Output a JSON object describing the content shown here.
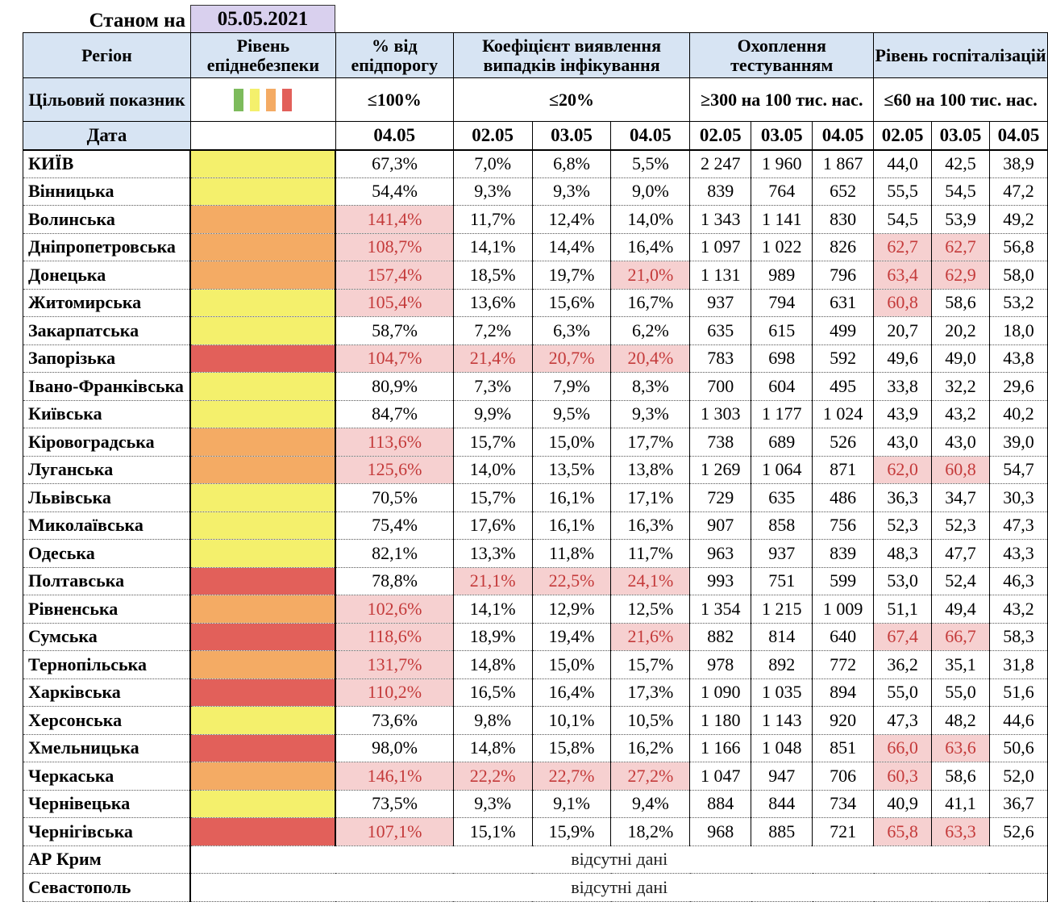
{
  "header": {
    "as_of_label": "Станом на",
    "as_of_date": "05.05.2021"
  },
  "colors": {
    "yellow": "#f4f06c",
    "orange": "#f4ab64",
    "red": "#e2605a",
    "header_blue": "#d7e4f3",
    "highlight": "#f6d0d0"
  },
  "columns": {
    "region": "Регіон",
    "epi_level": "Рівень епіднебезпеки",
    "pct_threshold": "% від епідпорогу",
    "detection": "Коефіцієнт виявлення випадків інфікування",
    "testing": "Охоплення тестуванням",
    "hospital": "Рівень госпіталізацій"
  },
  "targets": {
    "label": "Цільовий показник",
    "pct": "≤100%",
    "detection": "≤20%",
    "testing": "≥300 на 100 тис. нас.",
    "hospital": "≤60 на 100 тис. нас."
  },
  "dates": {
    "label": "Дата",
    "pct": "04.05",
    "days": [
      "02.05",
      "03.05",
      "04.05"
    ]
  },
  "legend_colors": [
    "#7dbb5c",
    "#f4f06c",
    "#f4ab64",
    "#e2605a"
  ],
  "rows": [
    {
      "name": "КИЇВ",
      "level": "yellow",
      "pct": "67,3%",
      "det": [
        "7,0%",
        "6,8%",
        "5,5%"
      ],
      "test": [
        "2 247",
        "1 960",
        "1 867"
      ],
      "hosp": [
        "44,0",
        "42,5",
        "38,9"
      ],
      "hl": []
    },
    {
      "name": "Вінницька",
      "level": "yellow",
      "pct": "54,4%",
      "det": [
        "9,3%",
        "9,3%",
        "9,0%"
      ],
      "test": [
        "839",
        "764",
        "652"
      ],
      "hosp": [
        "55,5",
        "54,5",
        "47,2"
      ],
      "hl": []
    },
    {
      "name": "Волинська",
      "level": "orange",
      "pct": "141,4%",
      "det": [
        "11,7%",
        "12,4%",
        "14,0%"
      ],
      "test": [
        "1 343",
        "1 141",
        "830"
      ],
      "hosp": [
        "54,5",
        "53,9",
        "49,2"
      ],
      "hl": [
        "pct"
      ]
    },
    {
      "name": "Дніпропетровська",
      "level": "orange",
      "pct": "108,7%",
      "det": [
        "14,1%",
        "14,4%",
        "16,4%"
      ],
      "test": [
        "1 097",
        "1 022",
        "826"
      ],
      "hosp": [
        "62,7",
        "62,7",
        "56,8"
      ],
      "hl": [
        "pct",
        "h0",
        "h1"
      ]
    },
    {
      "name": "Донецька",
      "level": "orange",
      "pct": "157,4%",
      "det": [
        "18,5%",
        "19,7%",
        "21,0%"
      ],
      "test": [
        "1 131",
        "989",
        "796"
      ],
      "hosp": [
        "63,4",
        "62,9",
        "58,0"
      ],
      "hl": [
        "pct",
        "d2",
        "h0",
        "h1"
      ]
    },
    {
      "name": "Житомирська",
      "level": "yellow",
      "pct": "105,4%",
      "det": [
        "13,6%",
        "15,6%",
        "16,7%"
      ],
      "test": [
        "937",
        "794",
        "631"
      ],
      "hosp": [
        "60,8",
        "58,6",
        "53,2"
      ],
      "hl": [
        "pct",
        "h0"
      ]
    },
    {
      "name": "Закарпатська",
      "level": "yellow",
      "pct": "58,7%",
      "det": [
        "7,2%",
        "6,3%",
        "6,2%"
      ],
      "test": [
        "635",
        "615",
        "499"
      ],
      "hosp": [
        "20,7",
        "20,2",
        "18,0"
      ],
      "hl": []
    },
    {
      "name": "Запорізька",
      "level": "red",
      "pct": "104,7%",
      "det": [
        "21,4%",
        "20,7%",
        "20,4%"
      ],
      "test": [
        "783",
        "698",
        "592"
      ],
      "hosp": [
        "49,6",
        "49,0",
        "43,8"
      ],
      "hl": [
        "pct",
        "d0",
        "d1",
        "d2"
      ]
    },
    {
      "name": "Івано-Франківська",
      "level": "yellow",
      "pct": "80,9%",
      "det": [
        "7,3%",
        "7,9%",
        "8,3%"
      ],
      "test": [
        "700",
        "604",
        "495"
      ],
      "hosp": [
        "33,8",
        "32,2",
        "29,6"
      ],
      "hl": []
    },
    {
      "name": "Київська",
      "level": "yellow",
      "pct": "84,7%",
      "det": [
        "9,9%",
        "9,5%",
        "9,3%"
      ],
      "test": [
        "1 303",
        "1 177",
        "1 024"
      ],
      "hosp": [
        "43,9",
        "43,2",
        "40,2"
      ],
      "hl": []
    },
    {
      "name": "Кіровоградська",
      "level": "orange",
      "pct": "113,6%",
      "det": [
        "15,7%",
        "15,0%",
        "17,7%"
      ],
      "test": [
        "738",
        "689",
        "526"
      ],
      "hosp": [
        "43,0",
        "43,0",
        "39,0"
      ],
      "hl": [
        "pct"
      ]
    },
    {
      "name": "Луганська",
      "level": "orange",
      "pct": "125,6%",
      "det": [
        "14,0%",
        "13,5%",
        "13,8%"
      ],
      "test": [
        "1 269",
        "1 064",
        "871"
      ],
      "hosp": [
        "62,0",
        "60,8",
        "54,7"
      ],
      "hl": [
        "pct",
        "h0",
        "h1"
      ]
    },
    {
      "name": "Львівська",
      "level": "yellow",
      "pct": "70,5%",
      "det": [
        "15,7%",
        "16,1%",
        "17,1%"
      ],
      "test": [
        "729",
        "635",
        "486"
      ],
      "hosp": [
        "36,3",
        "34,7",
        "30,3"
      ],
      "hl": []
    },
    {
      "name": "Миколаївська",
      "level": "yellow",
      "pct": "75,4%",
      "det": [
        "17,6%",
        "16,1%",
        "16,3%"
      ],
      "test": [
        "907",
        "858",
        "756"
      ],
      "hosp": [
        "52,3",
        "52,3",
        "47,3"
      ],
      "hl": []
    },
    {
      "name": "Одеська",
      "level": "yellow",
      "pct": "82,1%",
      "det": [
        "13,3%",
        "11,8%",
        "11,7%"
      ],
      "test": [
        "963",
        "937",
        "839"
      ],
      "hosp": [
        "48,3",
        "47,7",
        "43,3"
      ],
      "hl": []
    },
    {
      "name": "Полтавська",
      "level": "red",
      "pct": "78,8%",
      "det": [
        "21,1%",
        "22,5%",
        "24,1%"
      ],
      "test": [
        "993",
        "751",
        "599"
      ],
      "hosp": [
        "53,0",
        "52,4",
        "46,3"
      ],
      "hl": [
        "d0",
        "d1",
        "d2"
      ]
    },
    {
      "name": "Рівненська",
      "level": "orange",
      "pct": "102,6%",
      "det": [
        "14,1%",
        "12,9%",
        "12,5%"
      ],
      "test": [
        "1 354",
        "1 215",
        "1 009"
      ],
      "hosp": [
        "51,1",
        "49,4",
        "43,2"
      ],
      "hl": [
        "pct"
      ]
    },
    {
      "name": "Сумська",
      "level": "red",
      "pct": "118,6%",
      "det": [
        "18,9%",
        "19,4%",
        "21,6%"
      ],
      "test": [
        "882",
        "814",
        "640"
      ],
      "hosp": [
        "67,4",
        "66,7",
        "58,3"
      ],
      "hl": [
        "pct",
        "d2",
        "h0",
        "h1"
      ]
    },
    {
      "name": "Тернопільська",
      "level": "orange",
      "pct": "131,7%",
      "det": [
        "14,8%",
        "15,0%",
        "15,7%"
      ],
      "test": [
        "978",
        "892",
        "772"
      ],
      "hosp": [
        "36,2",
        "35,1",
        "31,8"
      ],
      "hl": [
        "pct"
      ]
    },
    {
      "name": "Харківська",
      "level": "red",
      "pct": "110,2%",
      "det": [
        "16,5%",
        "16,4%",
        "17,3%"
      ],
      "test": [
        "1 090",
        "1 035",
        "894"
      ],
      "hosp": [
        "55,0",
        "55,0",
        "51,6"
      ],
      "hl": [
        "pct"
      ]
    },
    {
      "name": "Херсонська",
      "level": "yellow",
      "pct": "73,6%",
      "det": [
        "9,8%",
        "10,1%",
        "10,5%"
      ],
      "test": [
        "1 180",
        "1 143",
        "920"
      ],
      "hosp": [
        "47,3",
        "48,2",
        "44,6"
      ],
      "hl": []
    },
    {
      "name": "Хмельницька",
      "level": "red",
      "pct": "98,0%",
      "det": [
        "14,8%",
        "15,8%",
        "16,2%"
      ],
      "test": [
        "1 166",
        "1 048",
        "851"
      ],
      "hosp": [
        "66,0",
        "63,6",
        "50,6"
      ],
      "hl": [
        "h0",
        "h1"
      ]
    },
    {
      "name": "Черкаська",
      "level": "orange",
      "pct": "146,1%",
      "det": [
        "22,2%",
        "22,7%",
        "27,2%"
      ],
      "test": [
        "1 047",
        "947",
        "706"
      ],
      "hosp": [
        "60,3",
        "58,6",
        "52,0"
      ],
      "hl": [
        "pct",
        "d0",
        "d1",
        "d2",
        "h0"
      ]
    },
    {
      "name": "Чернівецька",
      "level": "yellow",
      "pct": "73,5%",
      "det": [
        "9,3%",
        "9,1%",
        "9,4%"
      ],
      "test": [
        "884",
        "844",
        "734"
      ],
      "hosp": [
        "40,9",
        "41,1",
        "36,7"
      ],
      "hl": []
    },
    {
      "name": "Чернігівська",
      "level": "red",
      "pct": "107,1%",
      "det": [
        "15,1%",
        "15,9%",
        "18,2%"
      ],
      "test": [
        "968",
        "885",
        "721"
      ],
      "hosp": [
        "65,8",
        "63,3",
        "52,6"
      ],
      "hl": [
        "pct",
        "h0",
        "h1"
      ]
    }
  ],
  "nodata_rows": [
    {
      "name": "АР Крим",
      "text": "відсутні дані"
    },
    {
      "name": "Севастополь",
      "text": "відсутні дані"
    }
  ]
}
